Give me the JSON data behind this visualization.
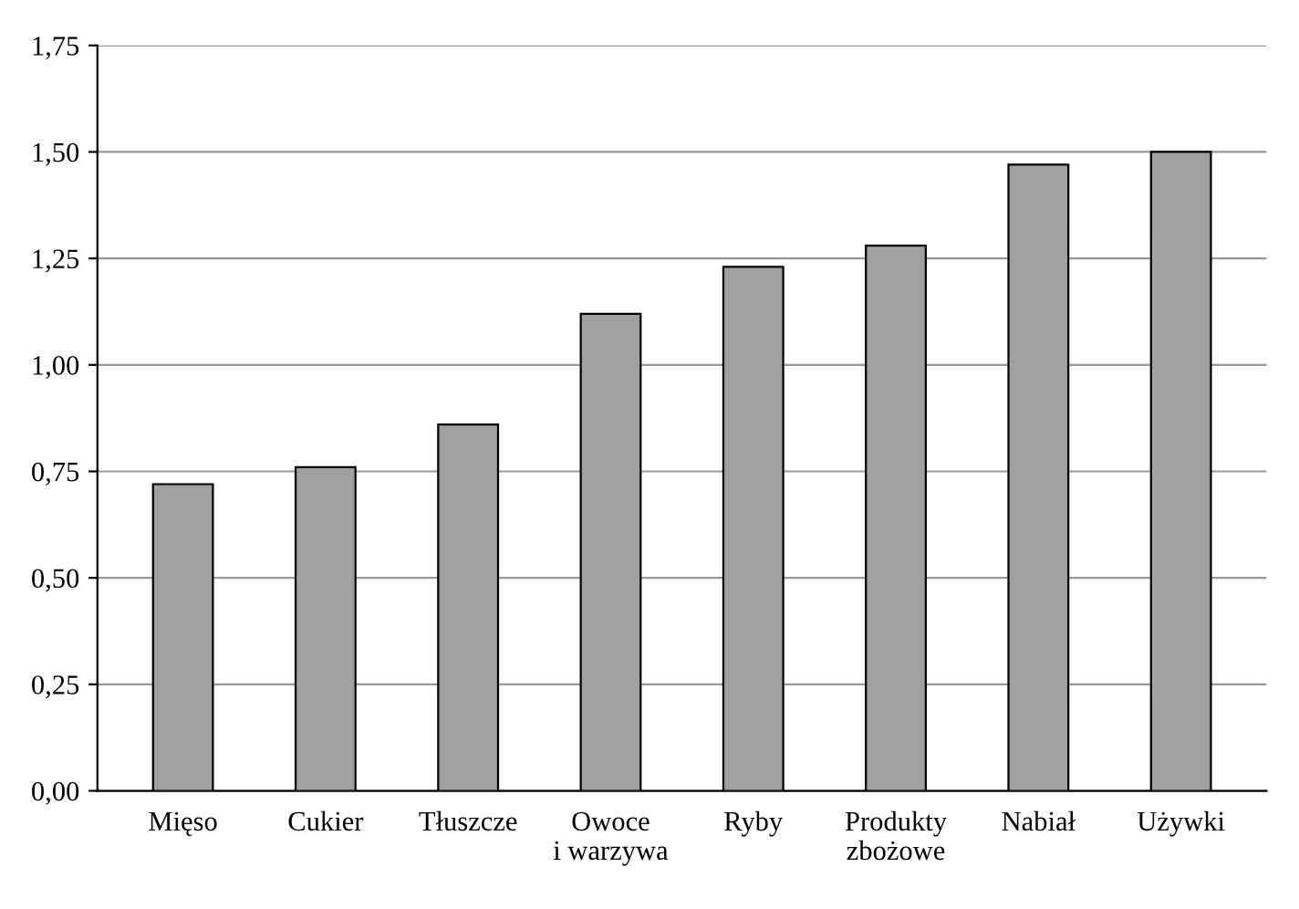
{
  "chart_data": {
    "type": "bar",
    "categories": [
      "Mięso",
      "Cukier",
      "Tłuszcze",
      "Owoce\ni warzywa",
      "Ryby",
      "Produkty\nzbożowe",
      "Nabiał",
      "Używki"
    ],
    "values": [
      0.72,
      0.76,
      0.86,
      1.12,
      1.23,
      1.28,
      1.47,
      1.5
    ],
    "color": "#a0a0a0",
    "ylim": [
      0,
      1.75
    ],
    "yticks": [
      {
        "value": 0,
        "label": "0,00"
      },
      {
        "value": 0.25,
        "label": "0,25"
      },
      {
        "value": 0.5,
        "label": "0,50"
      },
      {
        "value": 0.75,
        "label": "0,75"
      },
      {
        "value": 1.0,
        "label": "1,00"
      },
      {
        "value": 1.25,
        "label": "1,25"
      },
      {
        "value": 1.5,
        "label": "1,50"
      },
      {
        "value": 1.75,
        "label": "1,75"
      }
    ],
    "grid": "y"
  }
}
